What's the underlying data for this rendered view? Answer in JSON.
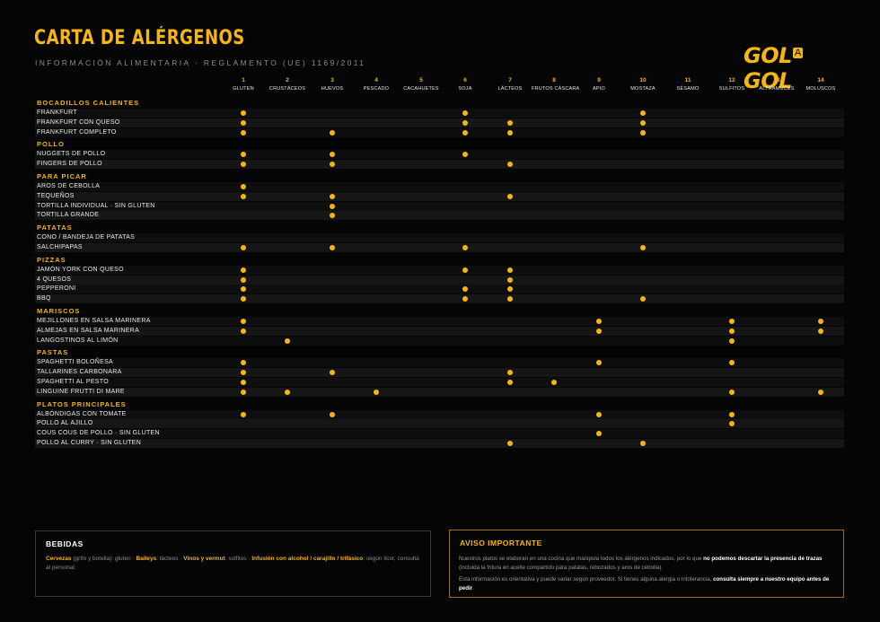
{
  "header": {
    "title": "CARTA DE ALÉRGENOS",
    "subtitle": "INFORMACIÓN ALIMENTARIA · REGLAMENTO (UE) 1169/2011",
    "logo_left": "GOL",
    "logo_mid": "A",
    "logo_right": "GOL"
  },
  "accent_color": "#f5b60e",
  "allergens": [
    {
      "num": "1",
      "name": "GLUTEN"
    },
    {
      "num": "2",
      "name": "CRUSTÁCEOS"
    },
    {
      "num": "3",
      "name": "HUEVOS"
    },
    {
      "num": "4",
      "name": "PESCADO"
    },
    {
      "num": "5",
      "name": "CACAHUETES"
    },
    {
      "num": "6",
      "name": "SOJA"
    },
    {
      "num": "7",
      "name": "LÁCTEOS"
    },
    {
      "num": "8",
      "name": "FRUTOS CÁSCARA"
    },
    {
      "num": "9",
      "name": "APIO"
    },
    {
      "num": "10",
      "name": "MOSTAZA"
    },
    {
      "num": "11",
      "name": "SÉSAMO"
    },
    {
      "num": "12",
      "name": "SULFITOS"
    },
    {
      "num": "13",
      "name": "ALTRAMUCES"
    },
    {
      "num": "14",
      "name": "MOLUSCOS"
    }
  ],
  "categories": [
    {
      "name": "BOCADILLOS CALIENTES",
      "items": [
        {
          "name": "FRANKFURT",
          "allergens": [
            1,
            6,
            10
          ]
        },
        {
          "name": "FRANKFURT CON QUESO",
          "allergens": [
            1,
            6,
            7,
            10
          ]
        },
        {
          "name": "FRANKFURT COMPLETO",
          "allergens": [
            1,
            3,
            6,
            7,
            10
          ]
        }
      ]
    },
    {
      "name": "POLLO",
      "items": [
        {
          "name": "NUGGETS DE POLLO",
          "allergens": [
            1,
            3,
            6
          ]
        },
        {
          "name": "FINGERS DE POLLO",
          "allergens": [
            1,
            3,
            7
          ]
        }
      ]
    },
    {
      "name": "PARA PICAR",
      "items": [
        {
          "name": "AROS DE CEBOLLA",
          "allergens": [
            1
          ]
        },
        {
          "name": "TEQUEÑOS",
          "allergens": [
            1,
            3,
            7
          ]
        },
        {
          "name": "TORTILLA INDIVIDUAL · SIN GLUTEN",
          "allergens": [
            3
          ]
        },
        {
          "name": "TORTILLA GRANDE",
          "allergens": [
            3
          ]
        }
      ]
    },
    {
      "name": "PATATAS",
      "items": [
        {
          "name": "CONO / BANDEJA DE PATATAS",
          "allergens": []
        },
        {
          "name": "SALCHIPAPAS",
          "allergens": [
            1,
            3,
            6,
            10
          ]
        }
      ]
    },
    {
      "name": "PIZZAS",
      "items": [
        {
          "name": "JAMÓN YORK CON QUESO",
          "allergens": [
            1,
            6,
            7
          ]
        },
        {
          "name": "4 QUESOS",
          "allergens": [
            1,
            7
          ]
        },
        {
          "name": "PEPPERONI",
          "allergens": [
            1,
            6,
            7
          ]
        },
        {
          "name": "BBQ",
          "allergens": [
            1,
            6,
            7,
            10
          ]
        }
      ]
    },
    {
      "name": "MARISCOS",
      "items": [
        {
          "name": "MEJILLONES EN SALSA MARINERA",
          "allergens": [
            1,
            9,
            12,
            14
          ]
        },
        {
          "name": "ALMEJAS EN SALSA MARINERA",
          "allergens": [
            1,
            9,
            12,
            14
          ]
        },
        {
          "name": "LANGOSTINOS AL LIMÓN",
          "allergens": [
            2,
            12
          ]
        }
      ]
    },
    {
      "name": "PASTAS",
      "items": [
        {
          "name": "SPAGHETTI BOLOÑESA",
          "allergens": [
            1,
            9,
            12
          ]
        },
        {
          "name": "TALLARINES CARBONARA",
          "allergens": [
            1,
            3,
            7
          ]
        },
        {
          "name": "SPAGHETTI AL PESTO",
          "allergens": [
            1,
            7,
            8
          ]
        },
        {
          "name": "LINGUINE FRUTTI DI MARE",
          "allergens": [
            1,
            2,
            4,
            12,
            14
          ]
        }
      ]
    },
    {
      "name": "PLATOS PRINCIPALES",
      "items": [
        {
          "name": "ALBÓNDIGAS CON TOMATE",
          "allergens": [
            1,
            3,
            9,
            12
          ]
        },
        {
          "name": "POLLO AL AJILLO",
          "allergens": [
            12
          ]
        },
        {
          "name": "COUS COUS DE POLLO · SIN GLUTEN",
          "allergens": [
            9
          ]
        },
        {
          "name": "POLLO AL CURRY · SIN GLUTEN",
          "allergens": [
            7,
            10
          ]
        }
      ]
    }
  ],
  "bebidas": {
    "title": "BEBIDAS",
    "cervezas": "Cervezas",
    "cervezas_detail": " (grifo y botella): gluten · ",
    "baileys": "Baileys",
    "baileys_detail": ": lácteos · ",
    "vinos": "Vinos y vermut",
    "vinos_detail": ": sulfitos · ",
    "infusion": "Infusión con alcohol / carajillo / trifásico",
    "infusion_detail": ": según licor, consulta al personal."
  },
  "aviso": {
    "title": "AVISO IMPORTANTE",
    "p1_a": "Nuestros platos se elaboran en una cocina que manipula todos los alérgenos indicados, por lo que ",
    "p1_b": "no podemos descartar la presencia de trazas",
    "p1_c": " (incluida la fritura en aceite compartido para patatas, rebozados y aros de cebolla).",
    "p2_a": "Esta información es orientativa y puede variar según proveedor. Si tienes alguna alergia o intolerancia, ",
    "p2_b": "consulta siempre a nuestro equipo antes de pedir",
    "p2_c": "."
  }
}
